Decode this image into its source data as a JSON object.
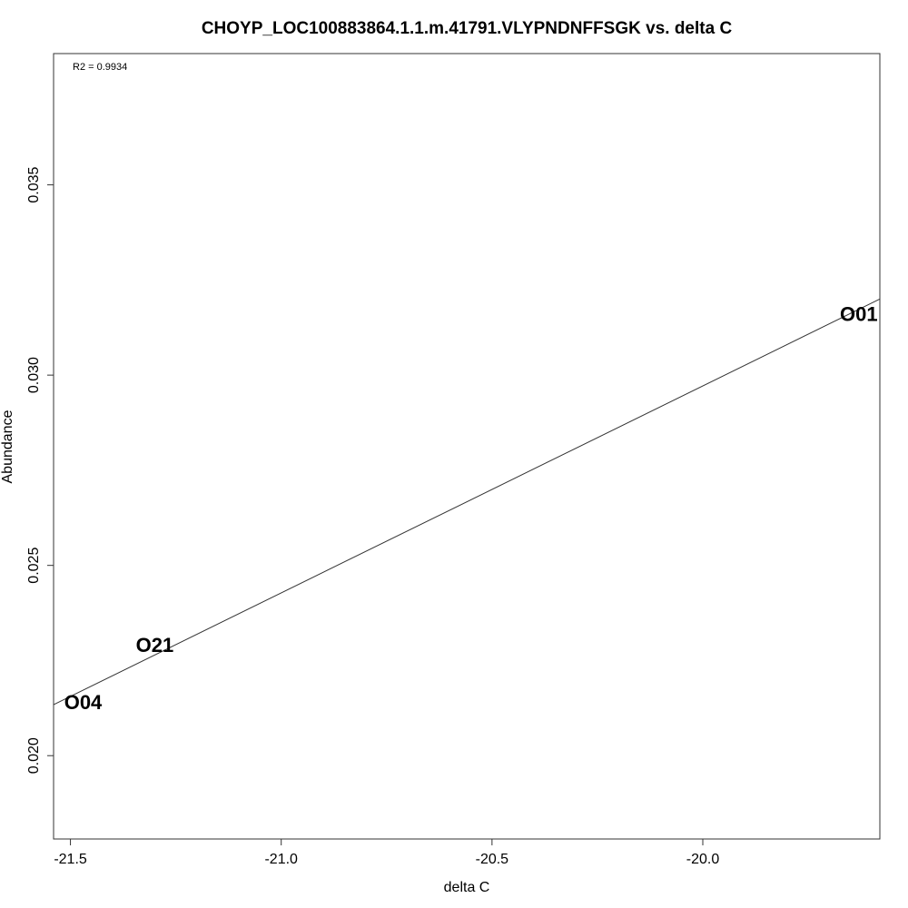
{
  "chart_data": {
    "type": "scatter",
    "title": "CHOYP_LOC100883864.1.1.m.41791.VLYPNDNFFSGK vs. delta C",
    "xlabel": "delta C",
    "ylabel": "Abundance",
    "xlim": [
      -21.54,
      -19.58
    ],
    "ylim": [
      0.01781,
      0.03845
    ],
    "x_ticks": [
      -21.5,
      -21.0,
      -20.5,
      -20.0
    ],
    "x_tick_labels": [
      "-21.5",
      "-21.0",
      "-20.5",
      "-20.0"
    ],
    "y_ticks": [
      0.02,
      0.025,
      0.03,
      0.035
    ],
    "y_tick_labels": [
      "0.020",
      "0.025",
      "0.030",
      "0.035"
    ],
    "points": [
      {
        "label": "O04",
        "x": -21.47,
        "y": 0.0214
      },
      {
        "label": "O21",
        "x": -21.3,
        "y": 0.0229
      },
      {
        "label": "O01",
        "x": -19.63,
        "y": 0.0316
      }
    ],
    "fit_line": {
      "x": [
        -21.54,
        -19.58
      ],
      "y": [
        0.02134,
        0.032
      ]
    },
    "annotation": "R2 = 0.9934",
    "grid": false,
    "legend": "none"
  }
}
